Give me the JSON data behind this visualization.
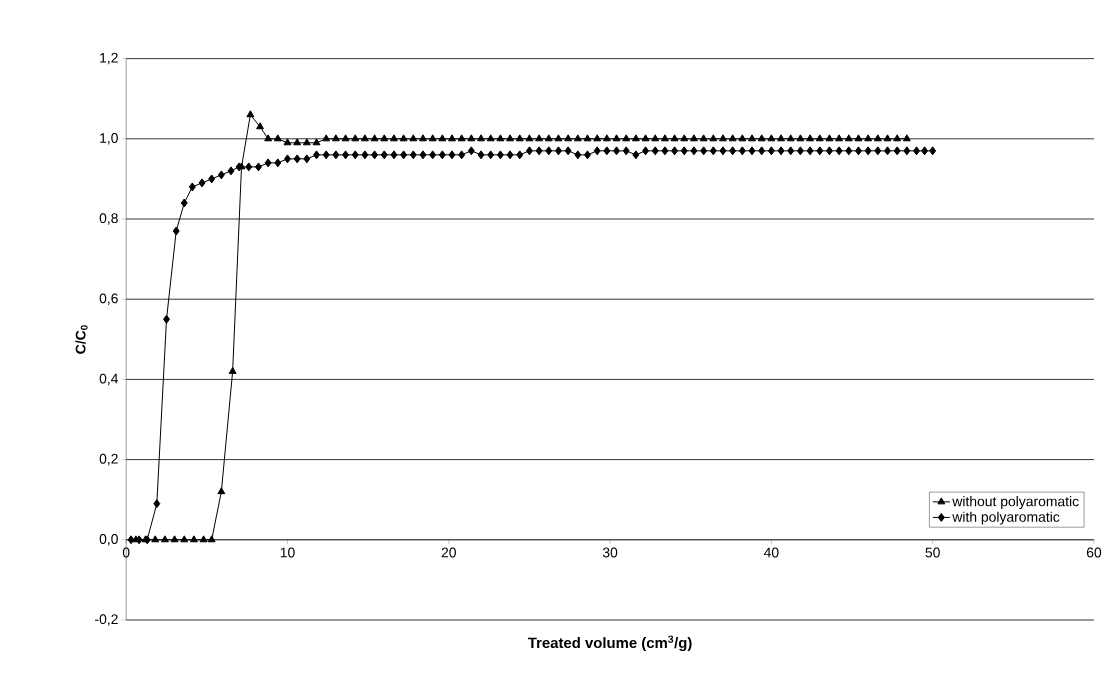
{
  "chart_data": {
    "type": "line",
    "xlabel": "Treated volume (cm$^{3}$/g)",
    "ylabel": "C/C$_{0}$",
    "xlim": [
      0,
      60
    ],
    "ylim": [
      -0.2,
      1.2
    ],
    "xticks": [
      0,
      10,
      20,
      30,
      40,
      50,
      60
    ],
    "yticks": [
      {
        "value": -0.2,
        "label": "-0,2"
      },
      {
        "value": 0,
        "label": "0,0"
      },
      {
        "value": 0.2,
        "label": "0,2"
      },
      {
        "value": 0.4,
        "label": "0,4"
      },
      {
        "value": 0.6,
        "label": "0,6"
      },
      {
        "value": 0.8,
        "label": "0,8"
      },
      {
        "value": 1.0,
        "label": "1,0"
      },
      {
        "value": 1.2,
        "label": "1,2"
      }
    ],
    "grid": "y",
    "legend": "bottom right",
    "series": [
      {
        "name": "without polyaromatic",
        "color": "#000000",
        "marker": "triangle",
        "x": [
          0.6,
          1.2,
          1.8,
          2.4,
          3.0,
          3.6,
          4.2,
          4.8,
          5.3,
          5.9,
          6.6,
          7.15,
          7.7,
          8.3,
          8.8,
          9.4,
          10.0,
          10.6,
          11.2,
          11.8,
          12.4,
          13.0,
          13.6,
          14.2,
          14.8,
          15.4,
          16.0,
          16.6,
          17.2,
          17.8,
          18.4,
          19.0,
          19.6,
          20.2,
          20.8,
          21.4,
          22.0,
          22.6,
          23.2,
          23.8,
          24.4,
          25.0,
          25.6,
          26.2,
          26.8,
          27.4,
          28.0,
          28.6,
          29.2,
          29.8,
          30.4,
          31.0,
          31.6,
          32.2,
          32.8,
          33.4,
          34.0,
          34.6,
          35.2,
          35.8,
          36.4,
          37.0,
          37.6,
          38.2,
          38.8,
          39.4,
          40.0,
          40.6,
          41.2,
          41.8,
          42.4,
          43.0,
          43.6,
          44.2,
          44.8,
          45.4,
          46.0,
          46.6,
          47.2,
          47.8,
          48.4
        ],
        "values": [
          0,
          0,
          0,
          0,
          0,
          0,
          0,
          0,
          0,
          0.12,
          0.42,
          0.93,
          1.06,
          1.03,
          1.0,
          1.0,
          0.99,
          0.99,
          0.99,
          0.99,
          1.0,
          1.0,
          1.0,
          1.0,
          1.0,
          1.0,
          1.0,
          1.0,
          1.0,
          1.0,
          1.0,
          1.0,
          1.0,
          1.0,
          1.0,
          1.0,
          1.0,
          1.0,
          1.0,
          1.0,
          1.0,
          1.0,
          1.0,
          1.0,
          1.0,
          1.0,
          1.0,
          1.0,
          1.0,
          1.0,
          1.0,
          1.0,
          1.0,
          1.0,
          1.0,
          1.0,
          1.0,
          1.0,
          1.0,
          1.0,
          1.0,
          1.0,
          1.0,
          1.0,
          1.0,
          1.0,
          1.0,
          1.0,
          1.0,
          1.0,
          1.0,
          1.0,
          1.0,
          1.0,
          1.0,
          1.0,
          1.0,
          1.0,
          1.0,
          1.0,
          1.0
        ]
      },
      {
        "name": "with polyaromatic",
        "color": "#000000",
        "marker": "diamond",
        "x": [
          0.3,
          0.8,
          1.3,
          1.9,
          2.5,
          3.1,
          3.6,
          4.1,
          4.7,
          5.3,
          5.9,
          6.5,
          7.0,
          7.6,
          8.2,
          8.8,
          9.4,
          10.0,
          10.6,
          11.2,
          11.8,
          12.4,
          13.0,
          13.6,
          14.2,
          14.8,
          15.4,
          16.0,
          16.6,
          17.2,
          17.8,
          18.4,
          19.0,
          19.6,
          20.2,
          20.8,
          21.4,
          22.0,
          22.6,
          23.2,
          23.8,
          24.4,
          25.0,
          25.6,
          26.2,
          26.8,
          27.4,
          28.0,
          28.6,
          29.2,
          29.8,
          30.4,
          31.0,
          31.6,
          32.2,
          32.8,
          33.4,
          34.0,
          34.6,
          35.2,
          35.8,
          36.4,
          37.0,
          37.6,
          38.2,
          38.8,
          39.4,
          40.0,
          40.6,
          41.2,
          41.8,
          42.4,
          43.0,
          43.6,
          44.2,
          44.8,
          45.4,
          46.0,
          46.6,
          47.2,
          47.8,
          48.4,
          49.0,
          49.5,
          50.0
        ],
        "values": [
          0,
          0,
          0,
          0.09,
          0.55,
          0.77,
          0.84,
          0.88,
          0.89,
          0.9,
          0.91,
          0.92,
          0.93,
          0.93,
          0.93,
          0.94,
          0.94,
          0.95,
          0.95,
          0.95,
          0.96,
          0.96,
          0.96,
          0.96,
          0.96,
          0.96,
          0.96,
          0.96,
          0.96,
          0.96,
          0.96,
          0.96,
          0.96,
          0.96,
          0.96,
          0.96,
          0.97,
          0.96,
          0.96,
          0.96,
          0.96,
          0.96,
          0.97,
          0.97,
          0.97,
          0.97,
          0.97,
          0.96,
          0.96,
          0.97,
          0.97,
          0.97,
          0.97,
          0.96,
          0.97,
          0.97,
          0.97,
          0.97,
          0.97,
          0.97,
          0.97,
          0.97,
          0.97,
          0.97,
          0.97,
          0.97,
          0.97,
          0.97,
          0.97,
          0.97,
          0.97,
          0.97,
          0.97,
          0.97,
          0.97,
          0.97,
          0.97,
          0.97,
          0.97,
          0.97,
          0.97,
          0.97,
          0.97,
          0.97,
          0.97
        ]
      }
    ]
  }
}
